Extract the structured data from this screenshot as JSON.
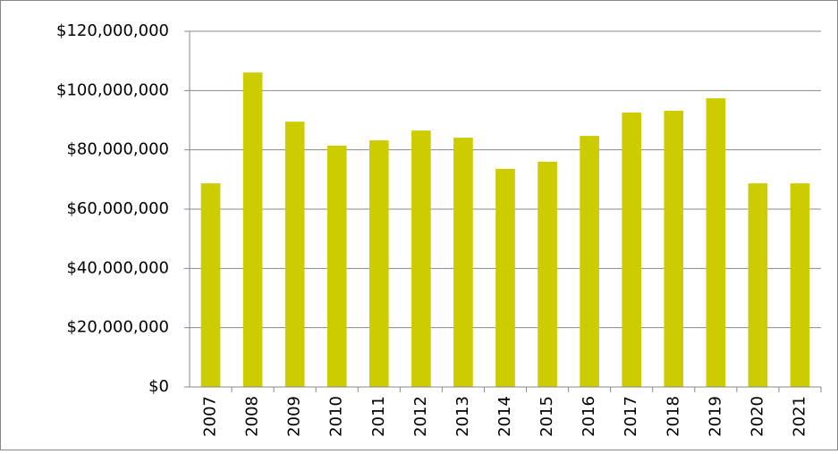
{
  "chart_data": {
    "type": "bar",
    "categories": [
      "2007",
      "2008",
      "2009",
      "2010",
      "2011",
      "2012",
      "2013",
      "2014",
      "2015",
      "2016",
      "2017",
      "2018",
      "2019",
      "2020",
      "2021"
    ],
    "values": [
      68700000,
      106100000,
      89500000,
      81400000,
      83200000,
      86500000,
      84100000,
      73600000,
      76000000,
      84700000,
      92600000,
      93200000,
      97400000,
      68700000,
      68700000
    ],
    "color": "#cccc00",
    "ylim": [
      0,
      120000000
    ],
    "yticks": [
      {
        "value": 0,
        "label": "$0"
      },
      {
        "value": 20000000,
        "label": "$20,000,000"
      },
      {
        "value": 40000000,
        "label": "$40,000,000"
      },
      {
        "value": 60000000,
        "label": "$60,000,000"
      },
      {
        "value": 80000000,
        "label": "$80,000,000"
      },
      {
        "value": 100000000,
        "label": "$100,000,000"
      },
      {
        "value": 120000000,
        "label": "$120,000,000"
      }
    ],
    "grid": true
  }
}
